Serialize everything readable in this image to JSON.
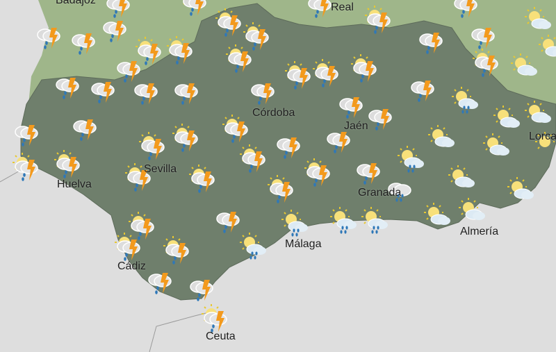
{
  "map": {
    "colors": {
      "sea": "#dedede",
      "neighbor_land": "#9fb68a",
      "region": "#6f7f6c",
      "sun": "#f5d547",
      "bolt": "#f39a1d",
      "rain": "#2f78b8",
      "cloud": "#e6e6e6"
    },
    "cities": [
      {
        "name": "Badajoz"
      },
      {
        "name": "Real"
      },
      {
        "name": "Córdoba"
      },
      {
        "name": "Jaén"
      },
      {
        "name": "Sevilla"
      },
      {
        "name": "Huelva"
      },
      {
        "name": "Granada"
      },
      {
        "name": "Málaga"
      },
      {
        "name": "Cádiz"
      },
      {
        "name": "Almería"
      },
      {
        "name": "Ceuta"
      },
      {
        "name": "Lorca"
      }
    ],
    "icon_types": [
      "storm",
      "sun-storm",
      "sun-rain",
      "sun-cloud",
      "cloud-rain",
      "sun"
    ],
    "icons": [
      "storm",
      "sun-storm",
      "storm",
      "sun-storm",
      "storm",
      "sun-cloud",
      "storm",
      "storm",
      "storm",
      "sun-storm",
      "sun-storm",
      "storm",
      "storm",
      "sun-cloud",
      "sun-storm",
      "sun-storm",
      "sun-storm",
      "sun-storm",
      "sun-storm",
      "sun-storm",
      "sun-storm",
      "sun-cloud",
      "storm",
      "storm",
      "storm",
      "storm",
      "storm",
      "storm",
      "storm",
      "sun-rain",
      "storm",
      "storm",
      "sun-cloud",
      "sun-cloud",
      "storm",
      "storm",
      "sun-storm",
      "sun-storm",
      "sun-storm",
      "storm",
      "storm",
      "sun-cloud",
      "sun-cloud",
      "sun-rain",
      "sun",
      "sun-storm",
      "sun-storm",
      "sun-storm",
      "sun-storm",
      "sun-storm",
      "sun-storm",
      "storm",
      "cloud-rain",
      "sun-cloud",
      "sun-cloud",
      "sun-storm",
      "storm",
      "sun-storm",
      "sun-rain",
      "sun-rain",
      "sun-rain",
      "sun-cloud",
      "sun-cloud",
      "sun-storm",
      "sun-storm",
      "sun-rain",
      "storm",
      "storm",
      "sun-storm"
    ]
  }
}
